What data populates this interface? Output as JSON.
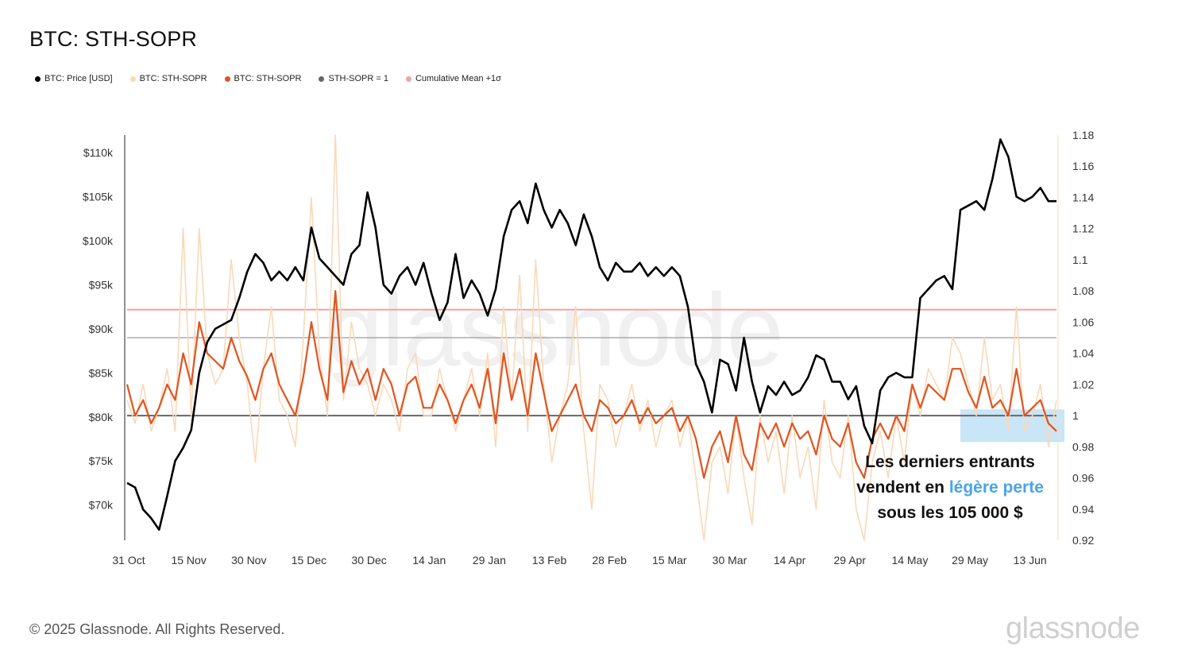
{
  "title": "BTC: STH-SOPR",
  "legend": [
    {
      "label": "BTC: Price [USD]",
      "color": "#000000"
    },
    {
      "label": "BTC: STH-SOPR",
      "color": "#f9d9b8"
    },
    {
      "label": "BTC: STH-SOPR",
      "color": "#e0541f"
    },
    {
      "label": "STH-SOPR = 1",
      "color": "#666666"
    },
    {
      "label": "Cumulative Mean +1σ",
      "color": "#f4a2a2"
    }
  ],
  "annotation": {
    "line1": "Les derniers entrants",
    "line2_prefix": "vendent en ",
    "line2_highlight": "légère perte",
    "line3": "sous les 105 000 $",
    "highlight_color": "#4aa3e8"
  },
  "footer": "© 2025 Glassnode. All Rights Reserved.",
  "brand": "glassnode",
  "watermark": "glassnode",
  "chart_data": {
    "type": "line",
    "x_ticks": [
      "31 Oct",
      "15 Nov",
      "30 Nov",
      "15 Dec",
      "30 Dec",
      "14 Jan",
      "29 Jan",
      "13 Feb",
      "28 Feb",
      "15 Mar",
      "30 Mar",
      "14 Apr",
      "29 Apr",
      "14 May",
      "29 May",
      "13 Jun"
    ],
    "y_left": {
      "ticks": [
        "$70k",
        "$75k",
        "$80k",
        "$85k",
        "$90k",
        "$95k",
        "$100k",
        "$105k",
        "$110k"
      ],
      "tick_values": [
        70000,
        75000,
        80000,
        85000,
        90000,
        95000,
        100000,
        105000,
        110000
      ],
      "range": [
        66000,
        112000
      ]
    },
    "y_right": {
      "ticks": [
        "0.92",
        "0.94",
        "0.96",
        "0.98",
        "1",
        "1.02",
        "1.04",
        "1.06",
        "1.08",
        "1.1",
        "1.12",
        "1.14",
        "1.16",
        "1.18"
      ],
      "tick_values": [
        0.92,
        0.94,
        0.96,
        0.98,
        1.0,
        1.02,
        1.04,
        1.06,
        1.08,
        1.1,
        1.12,
        1.14,
        1.16,
        1.18
      ],
      "range": [
        0.92,
        1.18
      ]
    },
    "series": [
      {
        "name": "BTC: Price [USD]",
        "axis": "left",
        "color": "#000000",
        "x": [
          0,
          2,
          4,
          6,
          8,
          10,
          12,
          14,
          16,
          18,
          20,
          22,
          24,
          26,
          28,
          30,
          32,
          34,
          36,
          38,
          40,
          42,
          44,
          46,
          48,
          50,
          52,
          54,
          56,
          58,
          60,
          62,
          64,
          66,
          68,
          70,
          72,
          74,
          76,
          78,
          80,
          82,
          84,
          86,
          88,
          90,
          92,
          94,
          96,
          98,
          100,
          102,
          104,
          106,
          108,
          110,
          112,
          114,
          116,
          118,
          120,
          122,
          124,
          126,
          128,
          130,
          132,
          134,
          136,
          138,
          140,
          142,
          144,
          146,
          148,
          150,
          152,
          154,
          156,
          158,
          160,
          162,
          164,
          166,
          168,
          170,
          172,
          174,
          176,
          178,
          180,
          182,
          184,
          186,
          188,
          190,
          192,
          194,
          196,
          198,
          200,
          202,
          204,
          206,
          208,
          210,
          212,
          214,
          216,
          218,
          220,
          222,
          224,
          226,
          228,
          230,
          232
        ],
        "y": [
          72500,
          72000,
          69500,
          68500,
          67200,
          71000,
          75000,
          76500,
          78500,
          85000,
          88500,
          90000,
          90500,
          91000,
          93500,
          96500,
          98500,
          97500,
          95500,
          96500,
          95500,
          97000,
          95500,
          101500,
          98000,
          97000,
          96000,
          95000,
          98500,
          99500,
          105500,
          101500,
          95000,
          94000,
          96000,
          97000,
          95000,
          97500,
          94000,
          91000,
          93000,
          98500,
          93500,
          95500,
          94000,
          91500,
          94500,
          100500,
          103500,
          104500,
          102000,
          106500,
          103500,
          101500,
          103500,
          102000,
          99500,
          103000,
          100500,
          97000,
          95500,
          97500,
          96500,
          96500,
          97500,
          96000,
          97000,
          96000,
          97000,
          96000,
          92500,
          86000,
          84000,
          80500,
          86500,
          86000,
          83000,
          89000,
          84000,
          80500,
          83500,
          82500,
          84000,
          82500,
          83000,
          84500,
          87000,
          86500,
          84000,
          84000,
          82000,
          83500,
          79000,
          77000,
          83000,
          84500,
          85000,
          84500,
          84500,
          93500,
          94500,
          95500,
          96000,
          94500,
          103500,
          104000,
          104500,
          103500,
          107000,
          111500,
          109500,
          105000,
          104500,
          105000,
          106000,
          104500,
          104500
        ],
        "y_note": "approximate daily closes resampled every 2 days from 31 Oct to ~16 Jun"
      },
      {
        "name": "BTC: STH-SOPR",
        "axis": "right",
        "color": "#f9d9b8",
        "description": "raw daily STH-SOPR (spiky)",
        "x": [
          0,
          2,
          4,
          6,
          8,
          10,
          12,
          14,
          16,
          18,
          20,
          22,
          24,
          26,
          28,
          30,
          32,
          34,
          36,
          38,
          40,
          42,
          44,
          46,
          48,
          50,
          52,
          54,
          56,
          58,
          60,
          62,
          64,
          66,
          68,
          70,
          72,
          74,
          76,
          78,
          80,
          82,
          84,
          86,
          88,
          90,
          92,
          94,
          96,
          98,
          100,
          102,
          104,
          106,
          108,
          110,
          112,
          114,
          116,
          118,
          120,
          122,
          124,
          126,
          128,
          130,
          132,
          134,
          136,
          138,
          140,
          142,
          144,
          146,
          148,
          150,
          152,
          154,
          156,
          158,
          160,
          162,
          164,
          166,
          168,
          170,
          172,
          174,
          176,
          178,
          180,
          182,
          184,
          186,
          188,
          190,
          192,
          194,
          196,
          198,
          200,
          202,
          204,
          206,
          208,
          210,
          212,
          214,
          216,
          218,
          220,
          222,
          224,
          226,
          228,
          230,
          232
        ],
        "y": [
          1.01,
          0.995,
          1.02,
          0.99,
          1.005,
          1.03,
          0.99,
          1.12,
          1.0,
          1.12,
          1.04,
          1.02,
          1.03,
          1.1,
          1.05,
          1.02,
          0.97,
          1.03,
          1.07,
          1.01,
          1.0,
          0.98,
          1.05,
          1.14,
          1.04,
          1.0,
          1.18,
          1.01,
          1.06,
          1.03,
          1.02,
          1.0,
          1.02,
          1.01,
          0.99,
          1.03,
          1.04,
          1.0,
          1.0,
          1.03,
          1.01,
          0.99,
          1.01,
          1.03,
          1.0,
          1.04,
          0.98,
          1.07,
          1.01,
          1.09,
          0.99,
          1.1,
          1.02,
          0.97,
          1.0,
          1.02,
          1.07,
          0.99,
          0.94,
          1.02,
          1.01,
          0.98,
          1.0,
          1.02,
          0.99,
          1.01,
          0.98,
          1.0,
          1.01,
          0.98,
          1.0,
          0.96,
          0.92,
          0.97,
          0.98,
          0.95,
          1.0,
          0.96,
          0.93,
          1.0,
          0.97,
          0.99,
          0.95,
          1.0,
          0.96,
          0.98,
          0.94,
          1.01,
          0.97,
          0.96,
          1.0,
          0.94,
          0.92,
          0.97,
          0.99,
          0.96,
          1.0,
          0.97,
          1.02,
          1.0,
          1.03,
          1.02,
          1.01,
          1.05,
          1.04,
          1.02,
          1.0,
          1.05,
          1.01,
          1.02,
          0.99,
          1.07,
          0.99,
          1.0,
          1.02,
          0.98,
          1.01
        ],
        "y_note": "approximate"
      },
      {
        "name": "BTC: STH-SOPR",
        "axis": "right",
        "color": "#e0541f",
        "description": "smoothed STH-SOPR",
        "x": [
          0,
          2,
          4,
          6,
          8,
          10,
          12,
          14,
          16,
          18,
          20,
          22,
          24,
          26,
          28,
          30,
          32,
          34,
          36,
          38,
          40,
          42,
          44,
          46,
          48,
          50,
          52,
          54,
          56,
          58,
          60,
          62,
          64,
          66,
          68,
          70,
          72,
          74,
          76,
          78,
          80,
          82,
          84,
          86,
          88,
          90,
          92,
          94,
          96,
          98,
          100,
          102,
          104,
          106,
          108,
          110,
          112,
          114,
          116,
          118,
          120,
          122,
          124,
          126,
          128,
          130,
          132,
          134,
          136,
          138,
          140,
          142,
          144,
          146,
          148,
          150,
          152,
          154,
          156,
          158,
          160,
          162,
          164,
          166,
          168,
          170,
          172,
          174,
          176,
          178,
          180,
          182,
          184,
          186,
          188,
          190,
          192,
          194,
          196,
          198,
          200,
          202,
          204,
          206,
          208,
          210,
          212,
          214,
          216,
          218,
          220,
          222,
          224,
          226,
          228,
          230,
          232
        ],
        "y": [
          1.02,
          1.0,
          1.01,
          0.995,
          1.005,
          1.02,
          1.01,
          1.04,
          1.02,
          1.06,
          1.04,
          1.035,
          1.03,
          1.05,
          1.035,
          1.025,
          1.01,
          1.03,
          1.04,
          1.02,
          1.01,
          1.0,
          1.025,
          1.06,
          1.03,
          1.01,
          1.08,
          1.015,
          1.035,
          1.02,
          1.03,
          1.01,
          1.03,
          1.02,
          1.0,
          1.02,
          1.025,
          1.005,
          1.005,
          1.02,
          1.01,
          0.995,
          1.01,
          1.02,
          1.005,
          1.03,
          0.995,
          1.04,
          1.01,
          1.03,
          1.0,
          1.04,
          1.015,
          0.99,
          1.0,
          1.01,
          1.02,
          1.0,
          0.99,
          1.01,
          1.005,
          0.995,
          1.0,
          1.01,
          0.995,
          1.005,
          0.995,
          1.0,
          1.005,
          0.99,
          1.0,
          0.985,
          0.96,
          0.98,
          0.99,
          0.97,
          1.0,
          0.975,
          0.965,
          0.995,
          0.985,
          0.995,
          0.98,
          0.995,
          0.985,
          0.99,
          0.975,
          1.0,
          0.985,
          0.98,
          0.995,
          0.97,
          0.96,
          0.985,
          0.995,
          0.985,
          1.0,
          0.99,
          1.02,
          1.005,
          1.02,
          1.015,
          1.01,
          1.03,
          1.03,
          1.015,
          1.005,
          1.025,
          1.005,
          1.01,
          1.0,
          1.03,
          1.0,
          1.005,
          1.01,
          0.995,
          0.99
        ],
        "y_note": "approximate"
      },
      {
        "name": "STH-SOPR = 1",
        "axis": "right",
        "color": "#666666",
        "constant": 1.0
      },
      {
        "name": "Cumulative Mean +1σ",
        "axis": "right",
        "color": "#f4a2a2",
        "constant": 1.068
      }
    ],
    "extra_reference_line": {
      "axis": "right",
      "value": 1.05,
      "color": "#9a9a9a"
    },
    "highlight_region": {
      "x_start": 208,
      "x_end": 232,
      "y_low": 0.983,
      "y_high": 1.004,
      "color": "#bfe0f7"
    },
    "x_total_days": 232,
    "grid": false
  }
}
